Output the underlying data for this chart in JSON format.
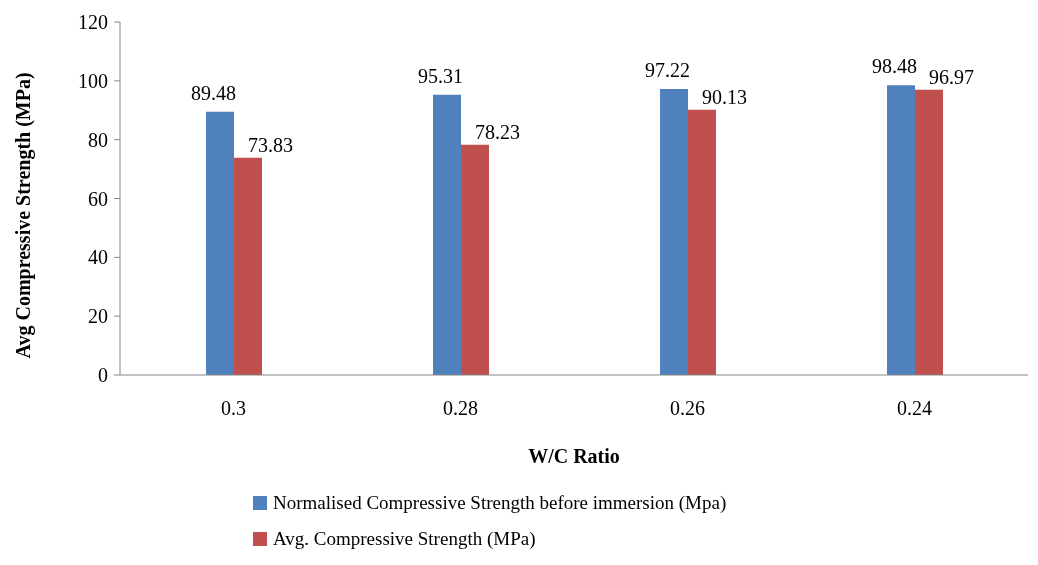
{
  "chart_data": {
    "type": "bar",
    "xlabel": "W/C Ratio",
    "ylabel": "Avg Compressive Strength (MPa)",
    "categories": [
      "0.3",
      "0.28",
      "0.26",
      "0.24"
    ],
    "series": [
      {
        "name": "Normalised Compressive Strength before immersion (Mpa)",
        "color": "#4f81bd",
        "values": [
          89.48,
          95.31,
          97.22,
          98.48
        ]
      },
      {
        "name": "Avg. Compressive Strength (MPa)",
        "color": "#c0504d",
        "values": [
          73.83,
          78.23,
          90.13,
          96.97
        ]
      }
    ],
    "ylim": [
      0,
      120
    ],
    "yticks": [
      0,
      20,
      40,
      60,
      80,
      100,
      120
    ],
    "grid": false,
    "legend": "bottom",
    "data_labels": true
  }
}
